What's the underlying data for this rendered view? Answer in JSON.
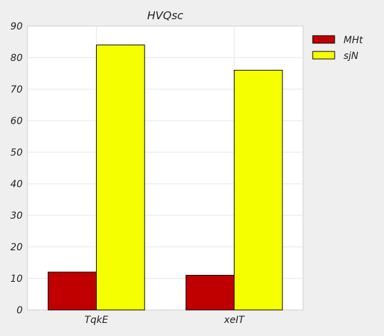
{
  "chart_data": {
    "type": "bar",
    "title": "HVQsc",
    "xlabel": "",
    "ylabel": "",
    "categories": [
      "TqkE",
      "xeIT"
    ],
    "series": [
      {
        "name": "MHt",
        "values": [
          12,
          11
        ],
        "color": "#c00000"
      },
      {
        "name": "sjN",
        "values": [
          84,
          76
        ],
        "color": "#f5ff00"
      }
    ],
    "ylim": [
      0,
      90
    ],
    "yticks": [
      0,
      10,
      20,
      30,
      40,
      50,
      60,
      70,
      80,
      90
    ],
    "grid": true,
    "legend": "top-right"
  }
}
